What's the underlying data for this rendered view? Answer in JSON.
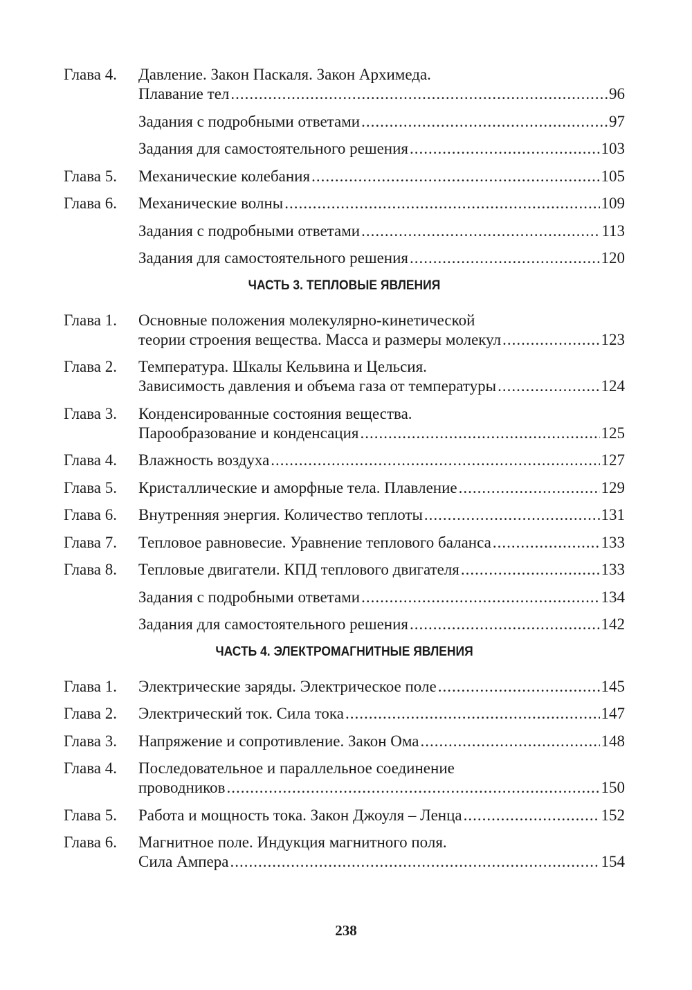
{
  "sections": [
    {
      "heading": "",
      "entries": [
        {
          "label": "Глава 4.",
          "lines": [
            "Давление. Закон Паскаля. Закон Архимеда.",
            "Плавание тел "
          ],
          "page": "96"
        },
        {
          "label": "",
          "lines": [
            "Задания с подробными ответами "
          ],
          "page": "97"
        },
        {
          "label": "",
          "lines": [
            "Задания для самостоятельного решения"
          ],
          "page": "103"
        },
        {
          "label": "Глава 5.",
          "lines": [
            "Механические колебания "
          ],
          "page": "105"
        },
        {
          "label": "Глава 6.",
          "lines": [
            "Механические волны"
          ],
          "page": "109"
        },
        {
          "label": "",
          "lines": [
            "Задания с подробными ответами "
          ],
          "page": "113"
        },
        {
          "label": "",
          "lines": [
            "Задания для самостоятельного решения"
          ],
          "page": "120"
        }
      ]
    },
    {
      "heading": "ЧАСТЬ 3. ТЕПЛОВЫЕ ЯВЛЕНИЯ",
      "entries": [
        {
          "label": "Глава 1.",
          "lines": [
            "Основные положения молекулярно-кинетической",
            "теории строения вещества. Масса и размеры молекул"
          ],
          "page": "123"
        },
        {
          "label": "Глава 2.",
          "lines": [
            "Температура. Шкалы Кельвина и Цельсия.",
            "Зависимость давления  и объема газа от температуры "
          ],
          "page": "124"
        },
        {
          "label": "Глава 3.",
          "lines": [
            "Конденсированные состояния вещества.",
            "Парообразование  и конденсация "
          ],
          "page": "125"
        },
        {
          "label": "Глава 4.",
          "lines": [
            "Влажность воздуха"
          ],
          "page": "127"
        },
        {
          "label": "Глава 5.",
          "lines": [
            "Кристаллические и аморфные тела. Плавление "
          ],
          "page": "129"
        },
        {
          "label": "Глава 6.",
          "lines": [
            "Внутренняя энергия. Количество теплоты"
          ],
          "page": "131"
        },
        {
          "label": "Глава 7.",
          "lines": [
            "Тепловое равновесие. Уравнение теплового баланса "
          ],
          "page": "133"
        },
        {
          "label": "Глава 8.",
          "lines": [
            "Тепловые двигатели. КПД теплового двигателя"
          ],
          "page": "133"
        },
        {
          "label": "",
          "lines": [
            "Задания с подробными ответами "
          ],
          "page": "134"
        },
        {
          "label": "",
          "lines": [
            "Задания для самостоятельного решения"
          ],
          "page": "142"
        }
      ]
    },
    {
      "heading": "ЧАСТЬ 4. ЭЛЕКТРОМАГНИТНЫЕ ЯВЛЕНИЯ",
      "entries": [
        {
          "label": "Глава 1.",
          "lines": [
            "Электрические заряды. Электрическое поле"
          ],
          "page": "145"
        },
        {
          "label": "Глава 2.",
          "lines": [
            "Электрический ток. Сила тока"
          ],
          "page": "147"
        },
        {
          "label": "Глава 3.",
          "lines": [
            "Напряжение и сопротивление. Закон Ома"
          ],
          "page": "148"
        },
        {
          "label": "Глава 4.",
          "lines": [
            "Последовательное и параллельное соединение",
            "проводников "
          ],
          "page": "150"
        },
        {
          "label": "Глава 5.",
          "lines": [
            "Работа и мощность тока. Закон Джоуля – Ленца"
          ],
          "page": "152"
        },
        {
          "label": "Глава 6.",
          "lines": [
            "Магнитное  поле. Индукция магнитного поля.",
            "Сила Ампера"
          ],
          "page": "154"
        }
      ]
    }
  ],
  "page_number": "238"
}
